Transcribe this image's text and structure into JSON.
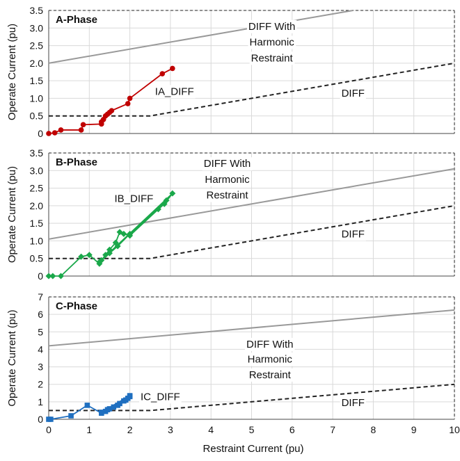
{
  "chart_data": [
    {
      "type": "line",
      "title": "A-Phase",
      "xlabel": "Restraint Current (pu)",
      "ylabel": "Operate Current (pu)",
      "xlim": [
        0,
        10
      ],
      "ylim": [
        0,
        3.5
      ],
      "xticks": [
        "0",
        "1",
        "2",
        "3",
        "4",
        "5",
        "6",
        "7",
        "8",
        "9",
        "10"
      ],
      "yticks": [
        "0",
        "0.5",
        "1.0",
        "1.5",
        "2.0",
        "2.5",
        "3.0",
        "3.5"
      ],
      "grid": true,
      "series": [
        {
          "name": "DIFF With Harmonic Restraint",
          "style": "solid",
          "color": "#999999",
          "points": [
            [
              0,
              2.0
            ],
            [
              7.5,
              3.5
            ]
          ]
        },
        {
          "name": "DIFF",
          "style": "dashed",
          "color": "#222222",
          "points": [
            [
              0,
              0.5
            ],
            [
              2.5,
              0.5
            ],
            [
              10,
              2.0
            ]
          ]
        },
        {
          "name": "IA_DIFF",
          "style": "solid",
          "color": "#c00000",
          "marker": "circle",
          "points": [
            [
              0,
              0
            ],
            [
              0.15,
              0.02
            ],
            [
              0.3,
              0.1
            ],
            [
              0.8,
              0.1
            ],
            [
              0.85,
              0.25
            ],
            [
              1.3,
              0.27
            ],
            [
              1.3,
              0.33
            ],
            [
              1.35,
              0.4
            ],
            [
              1.4,
              0.5
            ],
            [
              1.45,
              0.55
            ],
            [
              1.5,
              0.6
            ],
            [
              1.55,
              0.65
            ],
            [
              1.95,
              0.85
            ],
            [
              2.0,
              1.0
            ],
            [
              2.8,
              1.7
            ],
            [
              3.05,
              1.85
            ]
          ]
        }
      ],
      "annotations": [
        {
          "text": "DIFF With",
          "x": 5.5,
          "y": 3.05
        },
        {
          "text": "Harmonic",
          "x": 5.5,
          "y": 2.6
        },
        {
          "text": "Restraint",
          "x": 5.5,
          "y": 2.15
        },
        {
          "text": "IA_DIFF",
          "x": 3.1,
          "y": 1.2
        },
        {
          "text": "DIFF",
          "x": 7.5,
          "y": 1.15
        }
      ]
    },
    {
      "type": "line",
      "title": "B-Phase",
      "xlabel": "Restraint Current (pu)",
      "ylabel": "Operate Current (pu)",
      "xlim": [
        0,
        10
      ],
      "ylim": [
        0,
        3.5
      ],
      "xticks": [
        "0",
        "1",
        "2",
        "3",
        "4",
        "5",
        "6",
        "7",
        "8",
        "9",
        "10"
      ],
      "yticks": [
        "0",
        "0.5",
        "1.0",
        "1.5",
        "2.0",
        "2.5",
        "3.0",
        "3.5"
      ],
      "grid": true,
      "series": [
        {
          "name": "DIFF With Harmonic Restraint",
          "style": "solid",
          "color": "#999999",
          "points": [
            [
              0,
              1.05
            ],
            [
              10,
              3.05
            ]
          ]
        },
        {
          "name": "DIFF",
          "style": "dashed",
          "color": "#222222",
          "points": [
            [
              0,
              0.5
            ],
            [
              2.5,
              0.5
            ],
            [
              10,
              2.0
            ]
          ]
        },
        {
          "name": "IB_DIFF",
          "style": "solid",
          "color": "#1aa84a",
          "marker": "diamond",
          "points": [
            [
              0,
              0
            ],
            [
              0.1,
              0
            ],
            [
              0.3,
              0
            ],
            [
              0.8,
              0.55
            ],
            [
              1.0,
              0.6
            ],
            [
              1.25,
              0.35
            ],
            [
              1.3,
              0.45
            ],
            [
              1.4,
              0.6
            ],
            [
              1.5,
              0.75
            ],
            [
              1.65,
              0.95
            ],
            [
              1.75,
              1.25
            ],
            [
              1.85,
              1.2
            ],
            [
              2.0,
              1.15
            ],
            [
              2.7,
              1.9
            ],
            [
              2.85,
              2.05
            ],
            [
              3.05,
              2.35
            ],
            [
              1.25,
              0.4
            ],
            [
              1.5,
              0.65
            ],
            [
              1.7,
              0.85
            ],
            [
              2.0,
              1.2
            ],
            [
              2.9,
              2.15
            ]
          ]
        }
      ],
      "annotations": [
        {
          "text": "DIFF With",
          "x": 4.4,
          "y": 3.2
        },
        {
          "text": "Harmonic",
          "x": 4.4,
          "y": 2.75
        },
        {
          "text": "Restraint",
          "x": 4.4,
          "y": 2.3
        },
        {
          "text": "IB_DIFF",
          "x": 2.1,
          "y": 2.2
        },
        {
          "text": "DIFF",
          "x": 7.5,
          "y": 1.2
        }
      ]
    },
    {
      "type": "line",
      "title": "C-Phase",
      "xlabel": "Restraint Current (pu)",
      "ylabel": "Operate Current (pu)",
      "xlim": [
        0,
        10
      ],
      "ylim": [
        0,
        7
      ],
      "xticks": [
        "0",
        "1",
        "2",
        "3",
        "4",
        "5",
        "6",
        "7",
        "8",
        "9",
        "10"
      ],
      "yticks": [
        "0",
        "1",
        "2",
        "3",
        "4",
        "5",
        "6",
        "7"
      ],
      "grid": true,
      "series": [
        {
          "name": "DIFF With Harmonic Restraint",
          "style": "solid",
          "color": "#999999",
          "points": [
            [
              0,
              4.2
            ],
            [
              10,
              6.25
            ]
          ]
        },
        {
          "name": "DIFF",
          "style": "dashed",
          "color": "#222222",
          "points": [
            [
              0,
              0.5
            ],
            [
              2.5,
              0.5
            ],
            [
              10,
              2.0
            ]
          ]
        },
        {
          "name": "IC_DIFF",
          "style": "solid",
          "color": "#1f6fc0",
          "marker": "square",
          "points": [
            [
              0,
              0
            ],
            [
              0.05,
              0
            ],
            [
              0.55,
              0.2
            ],
            [
              0.95,
              0.8
            ],
            [
              1.3,
              0.35
            ],
            [
              1.4,
              0.45
            ],
            [
              1.5,
              0.6
            ],
            [
              1.6,
              0.7
            ],
            [
              1.75,
              0.9
            ],
            [
              1.85,
              1.05
            ],
            [
              1.95,
              1.2
            ],
            [
              2.0,
              1.35
            ],
            [
              1.3,
              0.4
            ],
            [
              1.45,
              0.55
            ],
            [
              1.7,
              0.8
            ],
            [
              1.9,
              1.1
            ],
            [
              2.0,
              1.3
            ]
          ]
        }
      ],
      "annotations": [
        {
          "text": "DIFF With",
          "x": 5.45,
          "y": 4.3
        },
        {
          "text": "Harmonic",
          "x": 5.45,
          "y": 3.45
        },
        {
          "text": "Restraint",
          "x": 5.45,
          "y": 2.55
        },
        {
          "text": "IC_DIFF",
          "x": 2.75,
          "y": 1.3
        },
        {
          "text": "DIFF",
          "x": 7.5,
          "y": 0.95
        }
      ]
    }
  ],
  "xlabel": "Restraint Current (pu)"
}
